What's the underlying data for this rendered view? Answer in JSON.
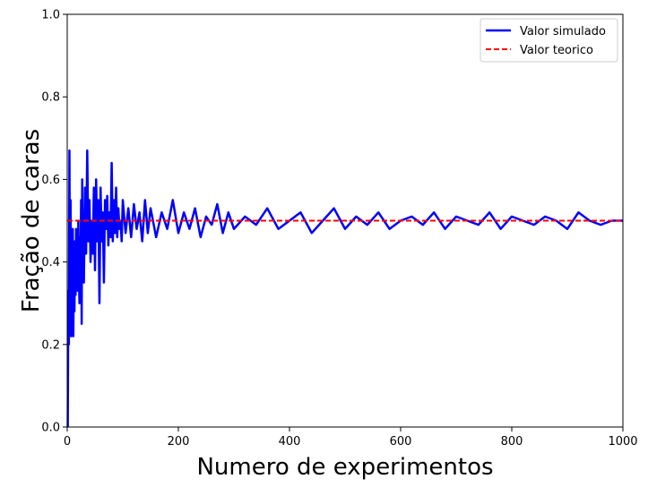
{
  "chart_data": {
    "type": "line",
    "title": "",
    "xlabel": "Numero de experimentos",
    "ylabel": "Fração de caras",
    "xlim": [
      0,
      1000
    ],
    "ylim": [
      0,
      1.0
    ],
    "xticks": [
      0,
      200,
      400,
      600,
      800,
      1000
    ],
    "yticks": [
      0.0,
      0.2,
      0.4,
      0.6,
      0.8,
      1.0
    ],
    "xtick_labels": [
      "0",
      "200",
      "400",
      "600",
      "800",
      "1000"
    ],
    "ytick_labels": [
      "0.0",
      "0.2",
      "0.4",
      "0.6",
      "0.8",
      "1.0"
    ],
    "grid": false,
    "legend_position": "top-right",
    "series": [
      {
        "name": "Valor simulado",
        "style": "solid",
        "color": "#0000ff",
        "x": [
          1,
          2,
          3,
          4,
          5,
          6,
          7,
          8,
          9,
          10,
          11,
          12,
          13,
          14,
          15,
          16,
          17,
          18,
          19,
          20,
          21,
          22,
          23,
          24,
          25,
          26,
          27,
          28,
          29,
          30,
          32,
          34,
          36,
          38,
          40,
          42,
          44,
          46,
          48,
          50,
          52,
          54,
          56,
          58,
          60,
          62,
          64,
          66,
          68,
          70,
          72,
          74,
          76,
          78,
          80,
          82,
          84,
          86,
          88,
          90,
          92,
          94,
          96,
          98,
          100,
          105,
          110,
          115,
          120,
          125,
          130,
          135,
          140,
          145,
          150,
          160,
          170,
          180,
          190,
          200,
          210,
          220,
          230,
          240,
          250,
          260,
          270,
          280,
          290,
          300,
          320,
          340,
          360,
          380,
          400,
          420,
          440,
          460,
          480,
          500,
          520,
          540,
          560,
          580,
          600,
          620,
          640,
          660,
          680,
          700,
          720,
          740,
          760,
          780,
          800,
          820,
          840,
          860,
          880,
          900,
          920,
          940,
          960,
          980,
          1000
        ],
        "y": [
          0.0,
          0.33,
          0.2,
          0.67,
          0.25,
          0.55,
          0.22,
          0.45,
          0.3,
          0.48,
          0.22,
          0.42,
          0.28,
          0.45,
          0.32,
          0.48,
          0.35,
          0.4,
          0.33,
          0.5,
          0.38,
          0.3,
          0.46,
          0.36,
          0.55,
          0.25,
          0.6,
          0.4,
          0.5,
          0.35,
          0.58,
          0.42,
          0.67,
          0.45,
          0.55,
          0.4,
          0.5,
          0.42,
          0.58,
          0.38,
          0.6,
          0.45,
          0.55,
          0.3,
          0.58,
          0.45,
          0.52,
          0.35,
          0.55,
          0.48,
          0.56,
          0.44,
          0.52,
          0.46,
          0.64,
          0.45,
          0.55,
          0.47,
          0.58,
          0.46,
          0.53,
          0.48,
          0.5,
          0.45,
          0.55,
          0.47,
          0.53,
          0.46,
          0.54,
          0.48,
          0.52,
          0.45,
          0.55,
          0.47,
          0.53,
          0.46,
          0.52,
          0.48,
          0.55,
          0.47,
          0.52,
          0.48,
          0.53,
          0.46,
          0.51,
          0.49,
          0.54,
          0.47,
          0.52,
          0.48,
          0.51,
          0.49,
          0.53,
          0.48,
          0.5,
          0.52,
          0.47,
          0.5,
          0.53,
          0.48,
          0.51,
          0.49,
          0.52,
          0.48,
          0.5,
          0.51,
          0.49,
          0.52,
          0.48,
          0.51,
          0.5,
          0.49,
          0.52,
          0.48,
          0.51,
          0.5,
          0.49,
          0.51,
          0.5,
          0.48,
          0.52,
          0.5,
          0.49,
          0.5,
          0.5
        ]
      },
      {
        "name": "Valor teorico",
        "style": "dashed",
        "color": "#ff0000",
        "x": [
          0,
          1000
        ],
        "y": [
          0.5,
          0.5
        ]
      }
    ]
  }
}
